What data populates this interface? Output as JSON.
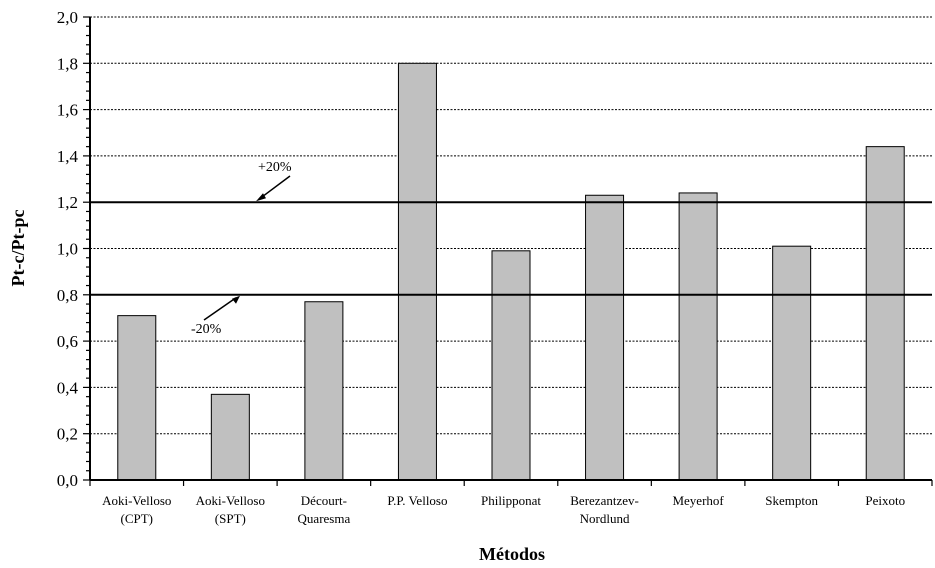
{
  "chart_data": {
    "type": "bar",
    "title": "",
    "xlabel": "Métodos",
    "ylabel": "Pt-c/Pt-pc",
    "ylim": [
      0,
      2.0
    ],
    "ytick_step": 0.2,
    "yticks": [
      "0,0",
      "0,2",
      "0,4",
      "0,6",
      "0,8",
      "1,0",
      "1,2",
      "1,4",
      "1,6",
      "1,8",
      "2,0"
    ],
    "grid": true,
    "categories": [
      [
        "Aoki-Velloso",
        "(CPT)"
      ],
      [
        "Aoki-Velloso",
        "(SPT)"
      ],
      [
        "Décourt-",
        "Quaresma"
      ],
      [
        "P.P. Velloso"
      ],
      [
        "Philipponat"
      ],
      [
        "Berezantzev-",
        "Nordlund"
      ],
      [
        "Meyerhof"
      ],
      [
        "Skempton"
      ],
      [
        "Peixoto"
      ]
    ],
    "values": [
      0.71,
      0.37,
      0.77,
      1.8,
      0.99,
      1.23,
      1.24,
      1.01,
      1.44
    ],
    "bar_color": "#c0c0c0",
    "reference_lines": [
      {
        "y": 1.2,
        "label": "+20%"
      },
      {
        "y": 0.8,
        "label": "-20%"
      }
    ]
  }
}
